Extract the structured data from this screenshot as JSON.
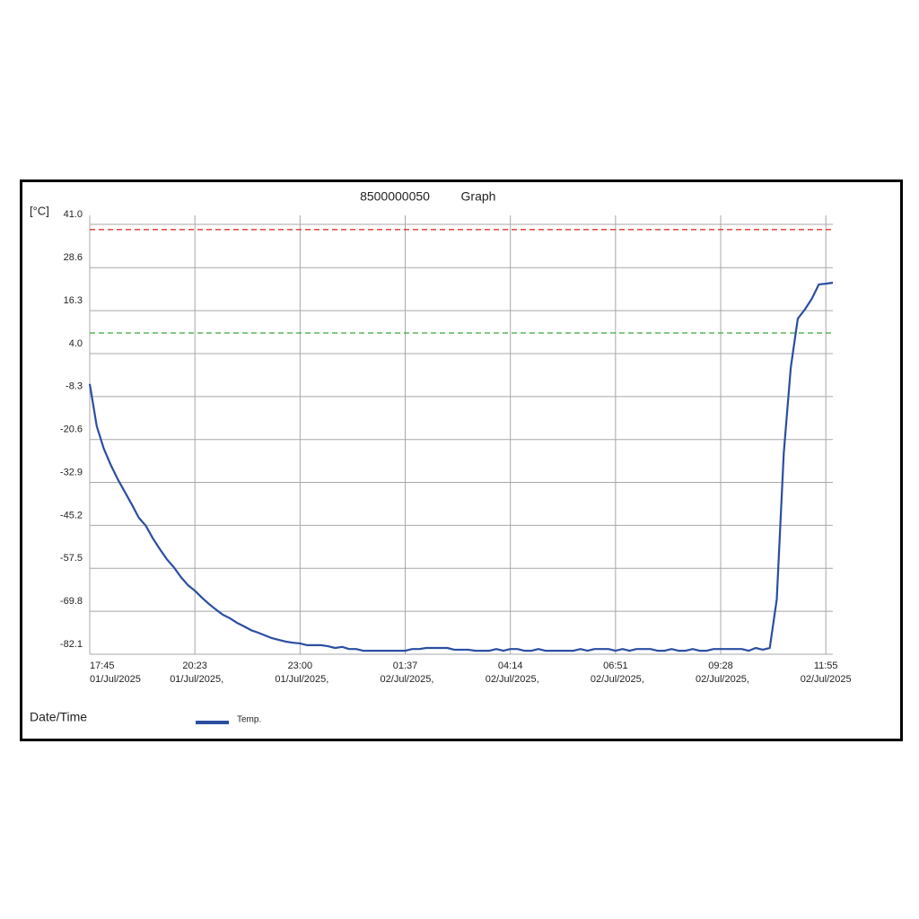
{
  "chart_data": {
    "type": "line",
    "title": "8500000050",
    "subtitle": "Graph",
    "y_label": "[°C]",
    "x_label": "Date/Time",
    "series": [
      {
        "name": "Temp.",
        "color": "#2b4ea2",
        "values": [
          -4.7,
          -16.8,
          -23.2,
          -27.9,
          -32.0,
          -35.6,
          -39.2,
          -43.0,
          -45.3,
          -48.9,
          -52.0,
          -54.9,
          -57.2,
          -60.0,
          -62.3,
          -63.9,
          -65.9,
          -67.7,
          -69.3,
          -70.8,
          -71.8,
          -73.1,
          -74.1,
          -75.2,
          -75.9,
          -76.7,
          -77.5,
          -78.0,
          -78.5,
          -78.8,
          -79.0,
          -79.5,
          -79.5,
          -79.5,
          -79.8,
          -80.3,
          -80.0,
          -80.6,
          -80.6,
          -81.1,
          -81.1,
          -81.1,
          -81.1,
          -81.1,
          -81.1,
          -81.1,
          -80.6,
          -80.6,
          -80.3,
          -80.3,
          -80.3,
          -80.3,
          -80.8,
          -80.8,
          -80.8,
          -81.1,
          -81.1,
          -81.1,
          -80.6,
          -81.1,
          -80.6,
          -80.6,
          -81.1,
          -81.1,
          -80.6,
          -81.1,
          -81.1,
          -81.1,
          -81.1,
          -81.1,
          -80.6,
          -81.1,
          -80.6,
          -80.6,
          -80.6,
          -81.1,
          -80.6,
          -81.1,
          -80.6,
          -80.6,
          -80.6,
          -81.1,
          -81.1,
          -80.6,
          -81.1,
          -81.1,
          -80.6,
          -81.1,
          -81.1,
          -80.6,
          -80.6,
          -80.6,
          -80.6,
          -80.6,
          -81.1,
          -80.3,
          -80.8,
          -80.3,
          -66.4,
          -24.5,
          0.0,
          14.0,
          16.6,
          19.7,
          23.8,
          24.0,
          24.3
        ]
      }
    ],
    "limits": [
      {
        "value": 39.5,
        "color": "#e0302a"
      },
      {
        "value": 9.9,
        "color": "#3aa83a"
      }
    ],
    "xlim": [
      0,
      106
    ],
    "xticks": [
      {
        "value": 0,
        "label": "17:45"
      },
      {
        "value": 15,
        "label": "20:23"
      },
      {
        "value": 30,
        "label": "23:00"
      },
      {
        "value": 45,
        "label": "01:37"
      },
      {
        "value": 60,
        "label": "04:14"
      },
      {
        "value": 75,
        "label": "06:51"
      },
      {
        "value": 90,
        "label": "09:28"
      },
      {
        "value": 105,
        "label": "11:55"
      }
    ],
    "xtick_dates": [
      "01/Jul/2025",
      "01/Jul/2025,",
      "01/Jul/2025,",
      "02/Jul/2025,",
      "02/Jul/2025,",
      "02/Jul/2025,",
      "02/Jul/2025,",
      "02/Jul/2025"
    ],
    "ylim": [
      -82.1,
      41.0
    ],
    "yticks": [
      {
        "value": 41.0,
        "label": "41.0"
      },
      28.6,
      16.3,
      {
        "value": 4.0,
        "label": "4.0"
      },
      -8.3,
      -20.6,
      -32.9,
      -45.2,
      -57.5,
      -69.8,
      -82.1
    ],
    "grid": true
  }
}
